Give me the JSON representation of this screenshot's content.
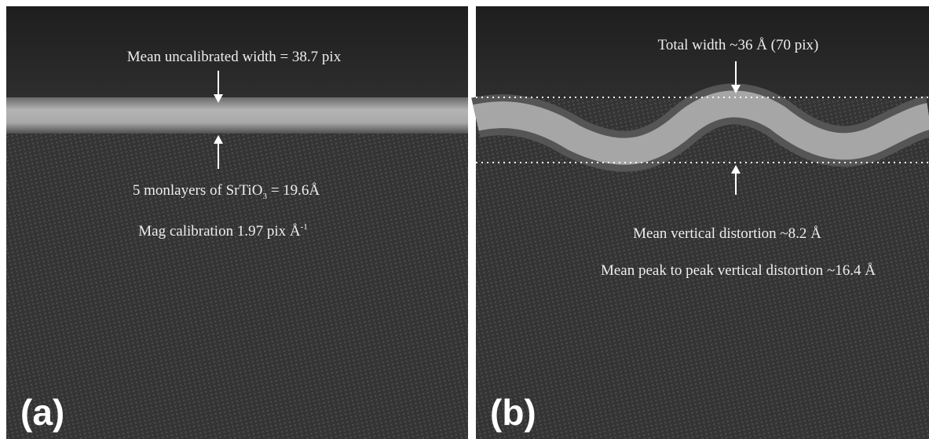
{
  "panels": [
    {
      "label": "(a)",
      "texts": {
        "width": "Mean uncalibrated width = 38.7 pix",
        "layers": {
          "before": "5 monlayers of SrTiO",
          "sub": "3",
          "after": " = 19.6Å"
        },
        "mag": {
          "before": "Mag calibration 1.97 pix Å",
          "sup": "-1"
        }
      }
    },
    {
      "label": "(b)",
      "texts": {
        "total": "Total width ~36 Å (70 pix)",
        "vertical": "Mean vertical distortion ~8.2 Å",
        "peak": "Mean peak to peak vertical distortion ~16.4 Å"
      }
    }
  ]
}
